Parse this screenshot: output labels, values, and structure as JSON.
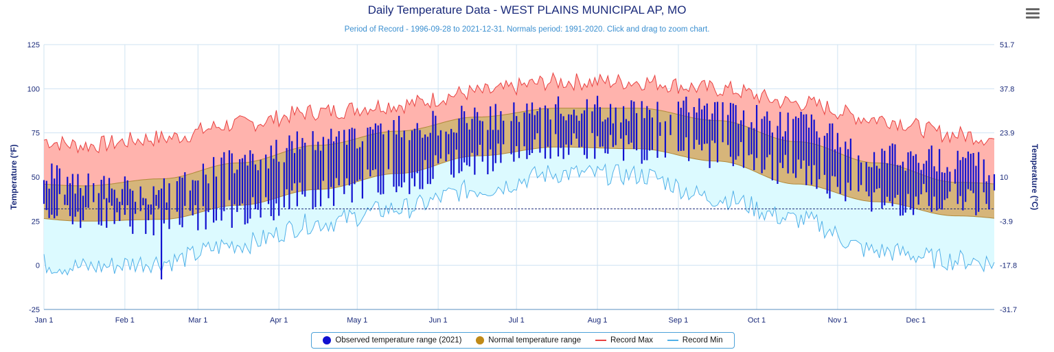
{
  "chart_data": {
    "type": "area",
    "title": "Daily Temperature Data - WEST PLAINS MUNICIPAL AP, MO",
    "subtitle": "Period of Record - 1996-09-28 to 2021-12-31. Normals period: 1991-2020. Click and drag to zoom chart.",
    "ylabel_left": "Temperature (°F)",
    "ylabel_right": "Temperature (°C)",
    "ylim_f": [
      -25,
      125
    ],
    "yticks_left": [
      "125",
      "100",
      "75",
      "50",
      "25",
      "0",
      "-25"
    ],
    "yticks_right": [
      "51.7",
      "37.8",
      "23.9",
      "10",
      "-3.9",
      "-17.8",
      "-31.7"
    ],
    "xticks": [
      "Jan 1",
      "Feb 1",
      "Mar 1",
      "Apr 1",
      "May 1",
      "Jun 1",
      "Jul 1",
      "Aug 1",
      "Sep 1",
      "Oct 1",
      "Nov 1",
      "Dec 1"
    ],
    "xlim_days": [
      1,
      365
    ],
    "freezing_line_f": 32,
    "grid": true,
    "legend_position": "bottom-center",
    "series": [
      {
        "name": "Observed temperature range (2021)",
        "color": "#1010d0",
        "monthly_typical_low": [
          30,
          25,
          30,
          40,
          48,
          60,
          67,
          66,
          64,
          53,
          36,
          38
        ],
        "monthly_typical_high": [
          45,
          42,
          58,
          70,
          78,
          84,
          88,
          88,
          88,
          80,
          62,
          60
        ],
        "extreme_low": {
          "day": 46,
          "value": -8
        },
        "extreme_high": {
          "day": 213,
          "value": 96
        }
      },
      {
        "name": "Normal temperature range",
        "color": "#c8a050",
        "monthly_low": [
          25,
          26,
          34,
          43,
          52,
          62,
          67,
          66,
          59,
          46,
          36,
          28
        ],
        "monthly_high": [
          45,
          49,
          58,
          68,
          76,
          84,
          89,
          89,
          82,
          70,
          58,
          47
        ]
      },
      {
        "name": "Record Max",
        "color": "#e84040",
        "monthly": [
          68,
          72,
          80,
          87,
          91,
          98,
          104,
          104,
          100,
          92,
          83,
          74
        ]
      },
      {
        "name": "Record Min",
        "color": "#50b0e8",
        "monthly": [
          -1,
          2,
          12,
          24,
          32,
          43,
          52,
          51,
          38,
          26,
          8,
          3
        ]
      }
    ]
  }
}
